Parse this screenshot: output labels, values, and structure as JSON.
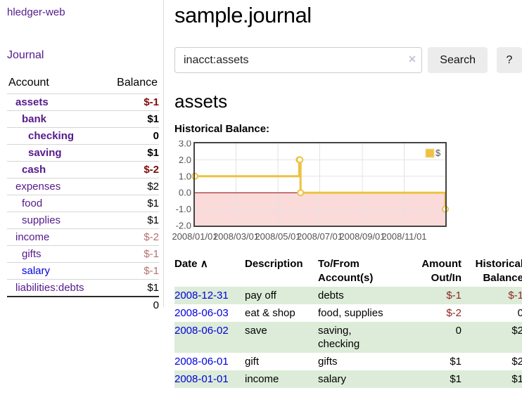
{
  "sidebar": {
    "brand": "hledger-web",
    "nav_journal": "Journal",
    "accounts_table": {
      "headers": {
        "account": "Account",
        "balance": "Balance"
      },
      "rows": [
        {
          "name": "assets",
          "indent": 1,
          "emph": true,
          "balance": "$-1",
          "balance_style": "neg-strong",
          "link_style": "visited"
        },
        {
          "name": "bank",
          "indent": 2,
          "emph": true,
          "balance": "$1",
          "balance_style": "normal",
          "link_style": "visited"
        },
        {
          "name": "checking",
          "indent": 3,
          "emph": true,
          "balance": "0",
          "balance_style": "normal",
          "link_style": "visited"
        },
        {
          "name": "saving",
          "indent": 3,
          "emph": true,
          "balance": "$1",
          "balance_style": "normal",
          "link_style": "visited"
        },
        {
          "name": "cash",
          "indent": 2,
          "emph": true,
          "balance": "$-2",
          "balance_style": "neg-strong",
          "link_style": "visited"
        },
        {
          "name": "expenses",
          "indent": 1,
          "emph": false,
          "balance": "$2",
          "balance_style": "normal",
          "link_style": "visited"
        },
        {
          "name": "food",
          "indent": 2,
          "emph": false,
          "balance": "$1",
          "balance_style": "normal",
          "link_style": "visited"
        },
        {
          "name": "supplies",
          "indent": 2,
          "emph": false,
          "balance": "$1",
          "balance_style": "normal",
          "link_style": "visited"
        },
        {
          "name": "income",
          "indent": 1,
          "emph": false,
          "balance": "$-2",
          "balance_style": "neg-soft",
          "link_style": "visited"
        },
        {
          "name": "gifts",
          "indent": 2,
          "emph": false,
          "balance": "$-1",
          "balance_style": "neg-soft",
          "link_style": "visited"
        },
        {
          "name": "salary",
          "indent": 2,
          "emph": false,
          "balance": "$-1",
          "balance_style": "neg-soft",
          "link_style": "new"
        },
        {
          "name": "liabilities:debts",
          "indent": 1,
          "emph": false,
          "balance": "$1",
          "balance_style": "normal",
          "link_style": "visited"
        }
      ],
      "total": "0"
    }
  },
  "main": {
    "title": "sample.journal",
    "search": {
      "value": "inacct:assets",
      "clear_icon": "×",
      "button": "Search",
      "help_button": "?"
    },
    "account_heading": "assets",
    "chart_title": "Historical Balance:"
  },
  "chart_data": {
    "type": "line",
    "steps": true,
    "title": "Historical Balance of assets",
    "series": [
      {
        "name": "$",
        "color": "#edc240",
        "points": [
          [
            "2008-01-01",
            1
          ],
          [
            "2008-06-01",
            2
          ],
          [
            "2008-06-02",
            2
          ],
          [
            "2008-06-03",
            0
          ],
          [
            "2008-12-31",
            -1
          ]
        ]
      }
    ],
    "ylim": [
      -2,
      3
    ],
    "yticks": [
      "3.0",
      "2.0",
      "1.0",
      "0.0",
      "-1.0",
      "-2.0"
    ],
    "xticks": [
      "2008/01/01",
      "2008/03/01",
      "2008/05/01",
      "2008/07/01",
      "2008/09/01",
      "2008/11/01"
    ],
    "legend_position": "top-right",
    "grid": true,
    "colors": {
      "negative_fill": "#fbdada",
      "zero_line": "#8b0000",
      "gridline": "#e3e3e3",
      "border": "#444444",
      "tick_text": "#545454",
      "legend_box_border": "#f2dfa2"
    }
  },
  "register": {
    "headers": {
      "date": "Date",
      "sort_icon": "∧",
      "description": "Description",
      "accounts": "To/From Account(s)",
      "amount": "Amount Out/In",
      "balance": "Historical Balance"
    },
    "rows": [
      {
        "date": "2008-12-31",
        "description": "pay off",
        "accounts": [
          "debts"
        ],
        "amount": "$-1",
        "amount_style": "neg",
        "balance": "$-1",
        "balance_style": "neg"
      },
      {
        "date": "2008-06-03",
        "description": "eat & shop",
        "accounts": [
          "food, supplies"
        ],
        "amount": "$-2",
        "amount_style": "neg",
        "balance": "0",
        "balance_style": "normal"
      },
      {
        "date": "2008-06-02",
        "description": "save",
        "accounts": [
          "saving,",
          "checking"
        ],
        "amount": "0",
        "amount_style": "normal",
        "balance": "$2",
        "balance_style": "normal"
      },
      {
        "date": "2008-06-01",
        "description": "gift",
        "accounts": [
          "gifts"
        ],
        "amount": "$1",
        "amount_style": "normal",
        "balance": "$2",
        "balance_style": "normal"
      },
      {
        "date": "2008-01-01",
        "description": "income",
        "accounts": [
          "salary"
        ],
        "amount": "$1",
        "amount_style": "normal",
        "balance": "$1",
        "balance_style": "normal"
      }
    ]
  }
}
